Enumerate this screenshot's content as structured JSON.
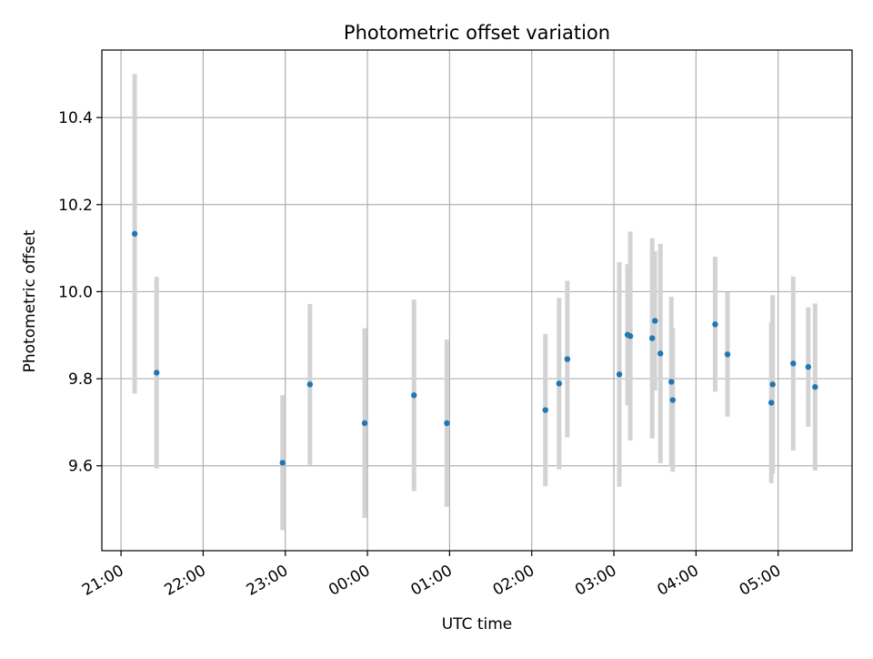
{
  "chart_data": {
    "type": "scatter",
    "title": "Photometric offset variation",
    "xlabel": "UTC time",
    "ylabel": "Photometric offset",
    "x_unit": "hours",
    "xlim": [
      "20:46",
      "29:54"
    ],
    "ylim": [
      9.405,
      10.555
    ],
    "x_ticks": [
      "21:00",
      "22:00",
      "23:00",
      "00:00",
      "01:00",
      "02:00",
      "03:00",
      "04:00",
      "05:00"
    ],
    "y_ticks": [
      "9.6",
      "9.8",
      "10.0",
      "10.2",
      "10.4"
    ],
    "grid": true,
    "point_color": "#1f77b4",
    "errorbar_color": "#d3d3d3",
    "points": [
      {
        "t": "21:10",
        "y": 10.133,
        "err": 0.367
      },
      {
        "t": "21:26",
        "y": 9.814,
        "err": 0.22
      },
      {
        "t": "22:58",
        "y": 9.607,
        "err": 0.155
      },
      {
        "t": "23:18",
        "y": 9.787,
        "err": 0.185
      },
      {
        "t": "23:58",
        "y": 9.698,
        "err": 0.218
      },
      {
        "t": "00:34",
        "y": 9.762,
        "err": 0.22
      },
      {
        "t": "00:58",
        "y": 9.698,
        "err": 0.192
      },
      {
        "t": "02:10",
        "y": 9.728,
        "err": 0.175
      },
      {
        "t": "02:20",
        "y": 9.789,
        "err": 0.197
      },
      {
        "t": "02:26",
        "y": 9.845,
        "err": 0.18
      },
      {
        "t": "03:04",
        "y": 9.81,
        "err": 0.258
      },
      {
        "t": "03:10",
        "y": 9.901,
        "err": 0.162
      },
      {
        "t": "03:12",
        "y": 9.898,
        "err": 0.24
      },
      {
        "t": "03:28",
        "y": 9.893,
        "err": 0.23
      },
      {
        "t": "03:30",
        "y": 9.933,
        "err": 0.16
      },
      {
        "t": "03:34",
        "y": 9.858,
        "err": 0.252
      },
      {
        "t": "03:42",
        "y": 9.793,
        "err": 0.195
      },
      {
        "t": "03:43",
        "y": 9.751,
        "err": 0.165
      },
      {
        "t": "04:14",
        "y": 9.925,
        "err": 0.155
      },
      {
        "t": "04:23",
        "y": 9.856,
        "err": 0.143
      },
      {
        "t": "04:55",
        "y": 9.745,
        "err": 0.185
      },
      {
        "t": "04:56",
        "y": 9.787,
        "err": 0.205
      },
      {
        "t": "05:11",
        "y": 9.835,
        "err": 0.2
      },
      {
        "t": "05:22",
        "y": 9.827,
        "err": 0.137
      },
      {
        "t": "05:27",
        "y": 9.781,
        "err": 0.192
      }
    ]
  }
}
